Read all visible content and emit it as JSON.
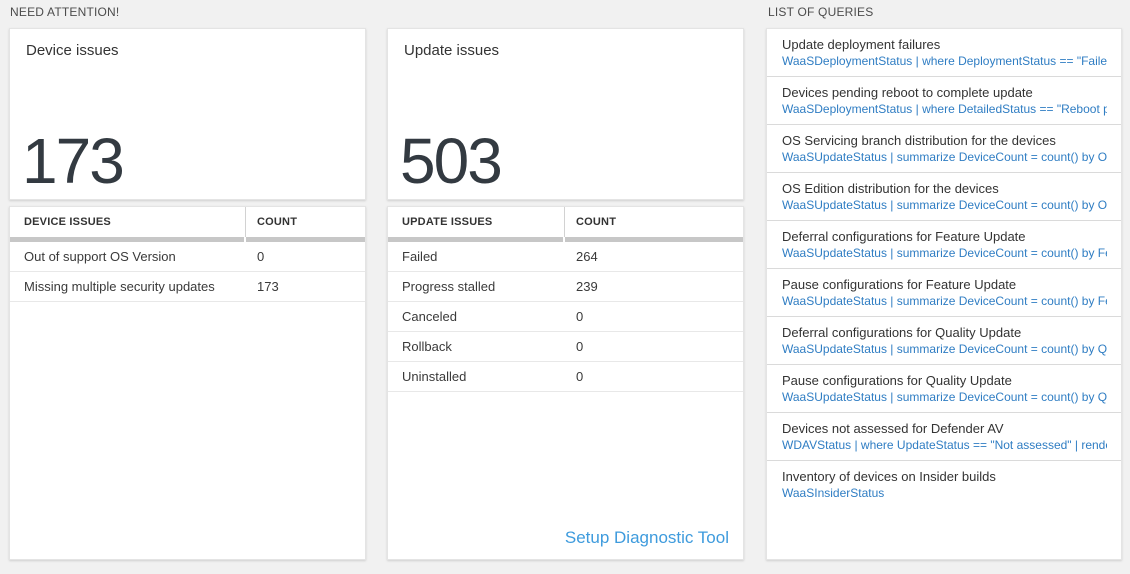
{
  "sections": {
    "need_attention_label": "NEED ATTENTION!",
    "queries_label": "LIST OF QUERIES"
  },
  "device_card": {
    "title": "Device issues",
    "count": "173"
  },
  "device_table": {
    "headers": [
      "DEVICE ISSUES",
      "COUNT"
    ],
    "rows": [
      {
        "label": "Out of support OS Version",
        "count": "0"
      },
      {
        "label": "Missing multiple security updates",
        "count": "173"
      }
    ]
  },
  "update_card": {
    "title": "Update issues",
    "count": "503"
  },
  "update_table": {
    "headers": [
      "UPDATE ISSUES",
      "COUNT"
    ],
    "rows": [
      {
        "label": "Failed",
        "count": "264"
      },
      {
        "label": "Progress stalled",
        "count": "239"
      },
      {
        "label": "Canceled",
        "count": "0"
      },
      {
        "label": "Rollback",
        "count": "0"
      },
      {
        "label": "Uninstalled",
        "count": "0"
      }
    ],
    "footer_link": "Setup Diagnostic Tool"
  },
  "queries": {
    "items": [
      {
        "title": "Update deployment failures",
        "query": "WaaSDeploymentStatus | where DeploymentStatus == \"Failed\" |..."
      },
      {
        "title": "Devices pending reboot to complete update",
        "query": "WaaSDeploymentStatus | where DetailedStatus == \"Reboot pend..."
      },
      {
        "title": "OS Servicing branch distribution for the devices",
        "query": "WaaSUpdateStatus | summarize DeviceCount = count() by OSSer..."
      },
      {
        "title": "OS Edition distribution for the devices",
        "query": "WaaSUpdateStatus | summarize DeviceCount = count() by OSEdit..."
      },
      {
        "title": "Deferral configurations for Feature Update",
        "query": "WaaSUpdateStatus | summarize DeviceCount = count() by Featur..."
      },
      {
        "title": "Pause configurations for Feature Update",
        "query": "WaaSUpdateStatus | summarize DeviceCount = count() by Featur..."
      },
      {
        "title": "Deferral configurations for Quality Update",
        "query": "WaaSUpdateStatus | summarize DeviceCount = count() by Qualit..."
      },
      {
        "title": "Pause configurations for Quality Update",
        "query": "WaaSUpdateStatus | summarize DeviceCount = count() by Qualit..."
      },
      {
        "title": "Devices not assessed for Defender AV",
        "query": "WDAVStatus | where UpdateStatus == \"Not assessed\" | render ta..."
      },
      {
        "title": "Inventory of devices on Insider builds",
        "query": "WaaSInsiderStatus"
      }
    ]
  },
  "colors": {
    "query_link_blue": "#2f7dc3",
    "setup_link_blue": "#3e9bdd",
    "big_number": "#333a41",
    "page_background": "#f1f1f1"
  }
}
